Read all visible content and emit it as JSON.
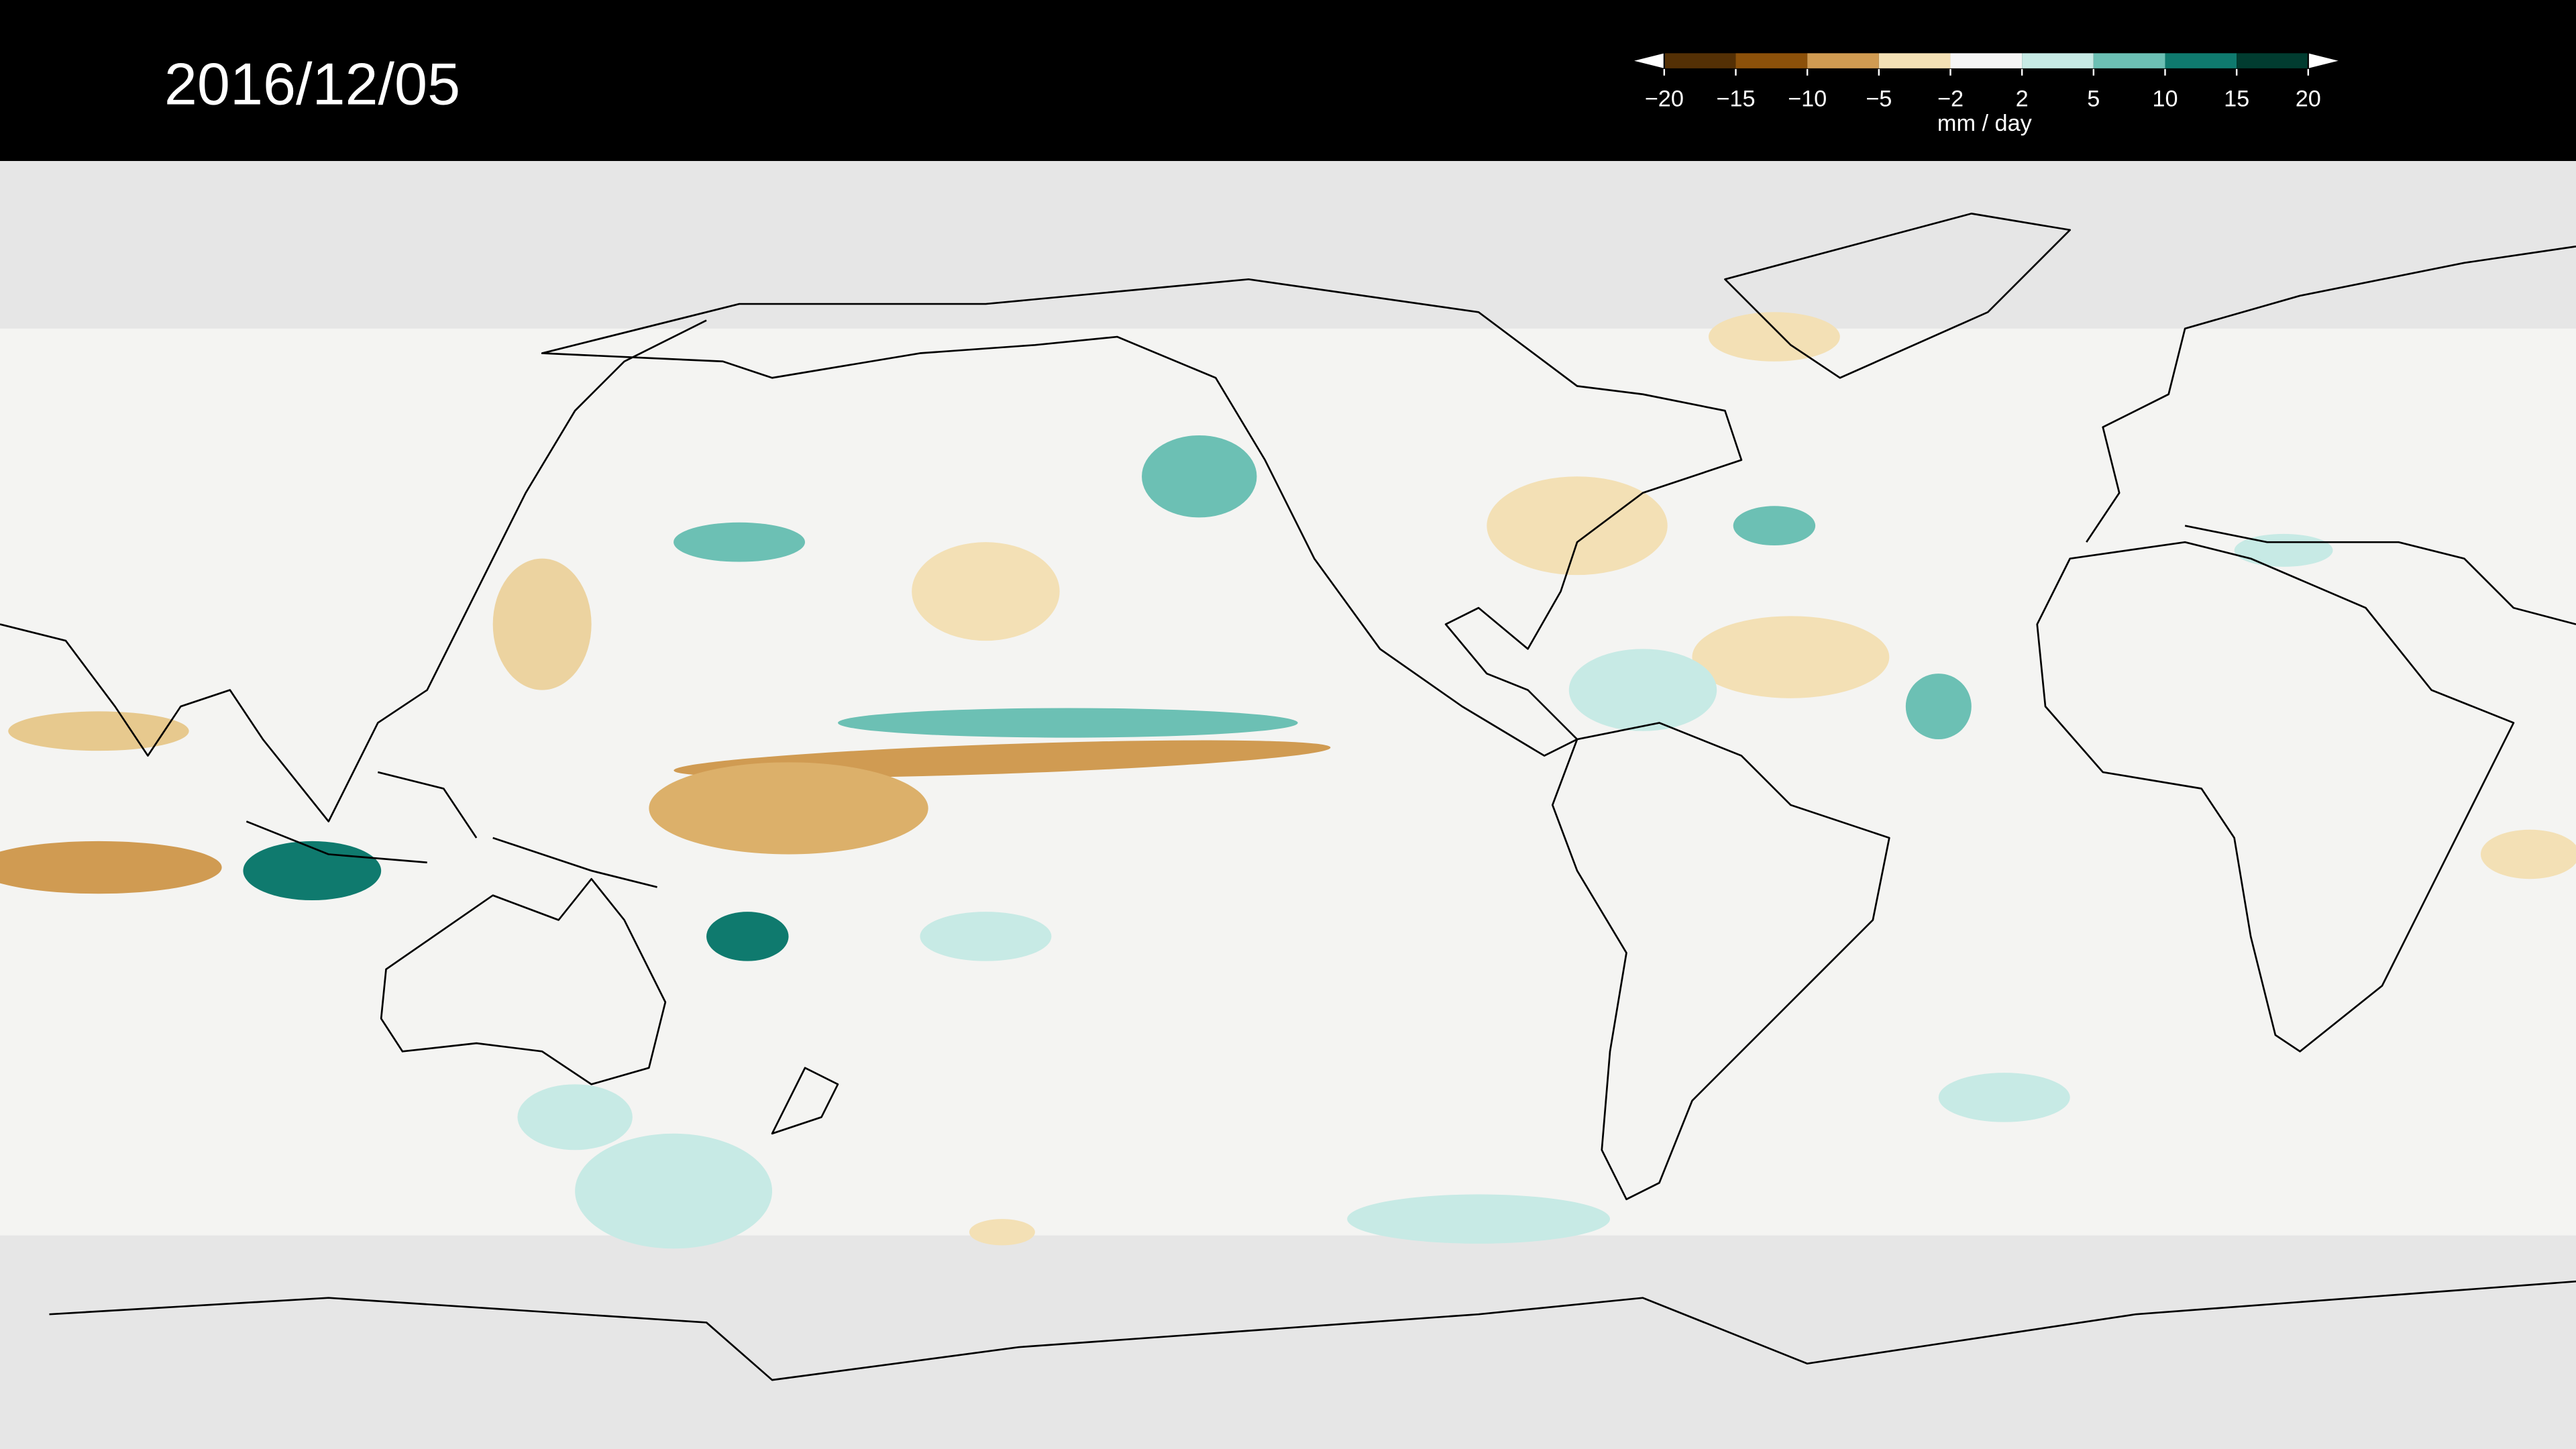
{
  "header": {
    "date": "2016/12/05"
  },
  "colorbar": {
    "ticks": [
      {
        "value": -20,
        "label": "−20"
      },
      {
        "value": -15,
        "label": "−15"
      },
      {
        "value": -10,
        "label": "−10"
      },
      {
        "value": -5,
        "label": "−5"
      },
      {
        "value": -2,
        "label": "−2"
      },
      2,
      5,
      10,
      15,
      20
    ],
    "colors": [
      "#543005",
      "#8c510a",
      "#d09b52",
      "#f3e0b5",
      "#f5f5f5",
      "#c7eae5",
      "#6cc0b4",
      "#0f7a6e",
      "#013c30"
    ],
    "label": "mm / day"
  }
}
